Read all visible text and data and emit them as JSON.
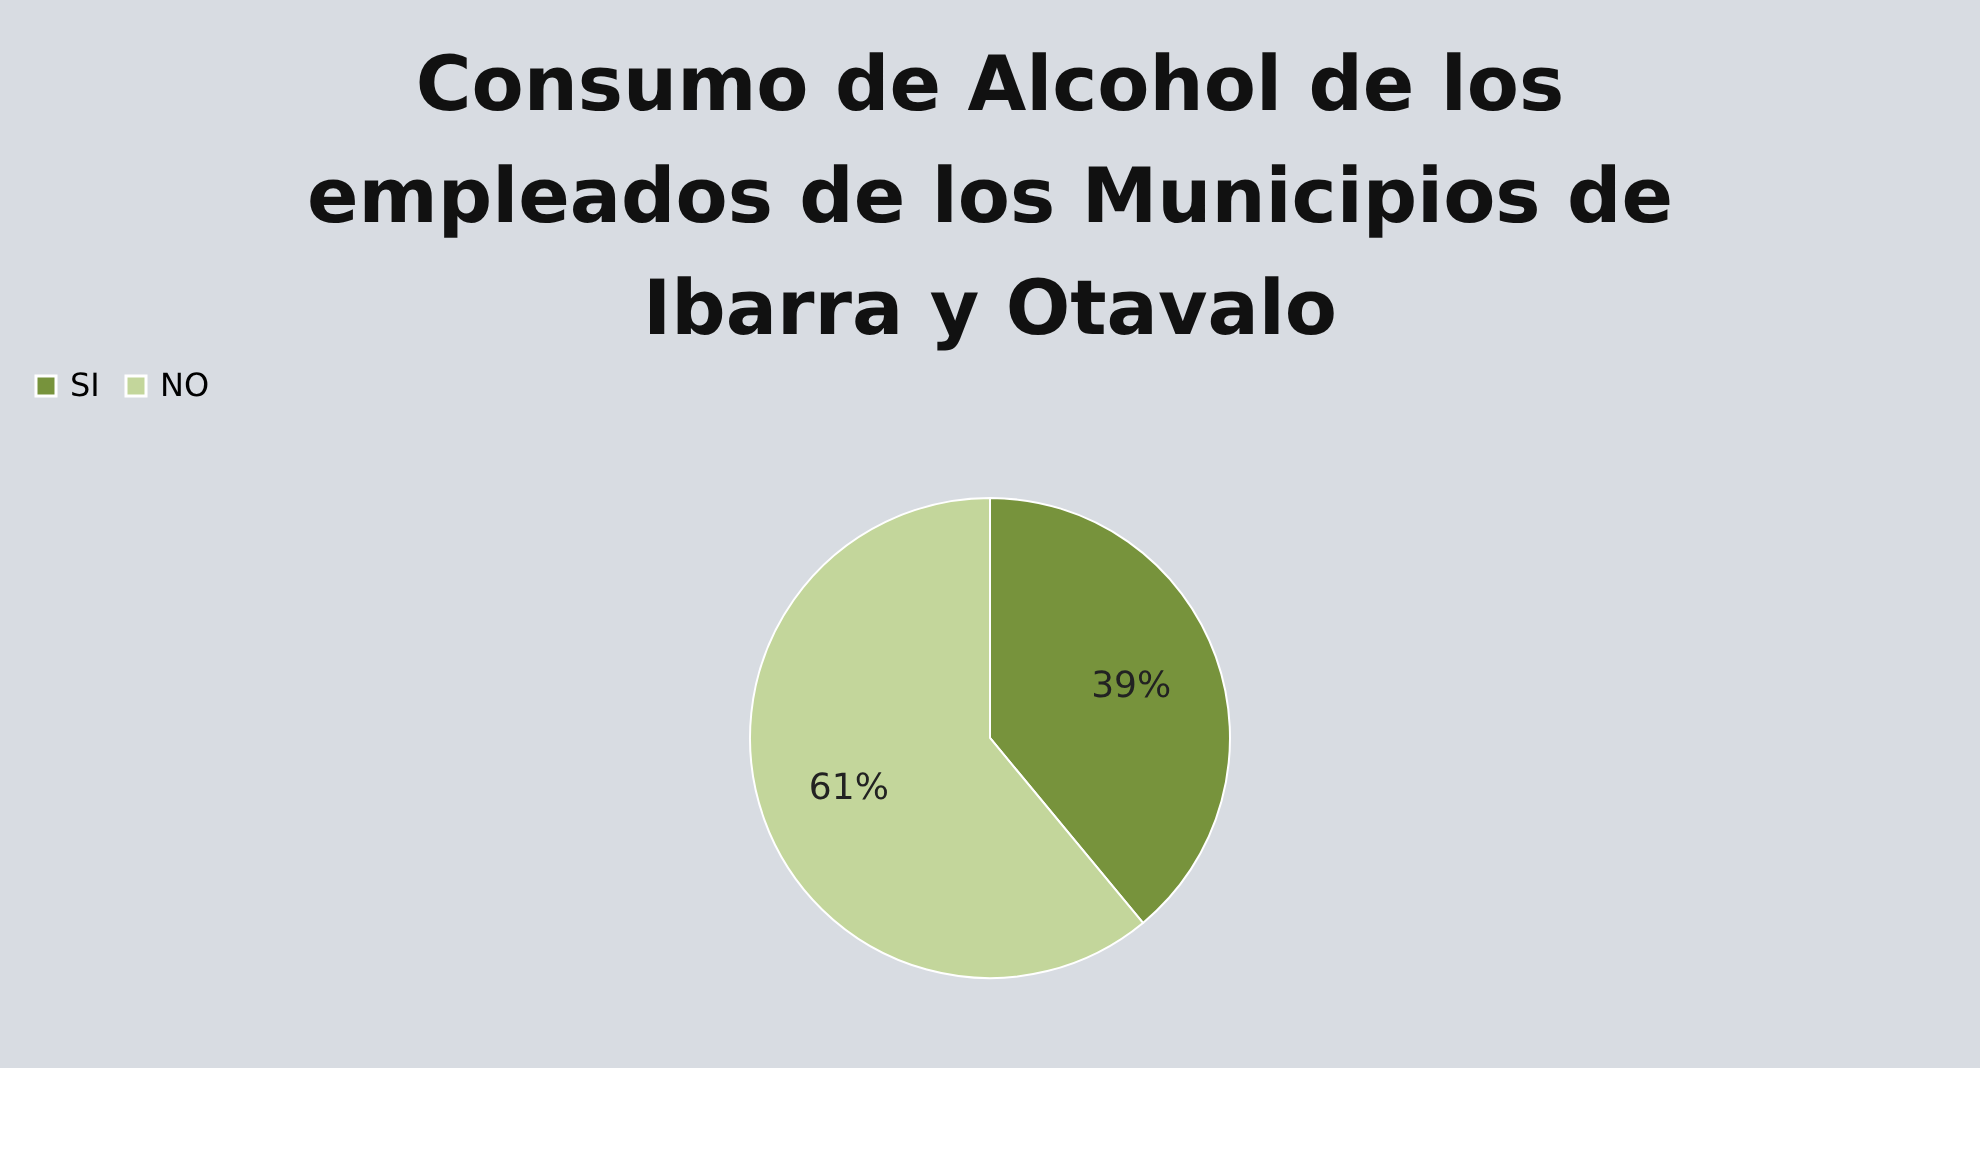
{
  "chart_data": {
    "type": "pie",
    "title": "Consumo de Alcohol de los empleados de los Municipios de Ibarra y Otavalo",
    "categories": [
      "SI",
      "NO"
    ],
    "values": [
      39,
      61
    ],
    "colors": [
      "#77933c",
      "#c3d69b"
    ],
    "value_labels": [
      "39%",
      "61%"
    ],
    "legend": "top"
  }
}
